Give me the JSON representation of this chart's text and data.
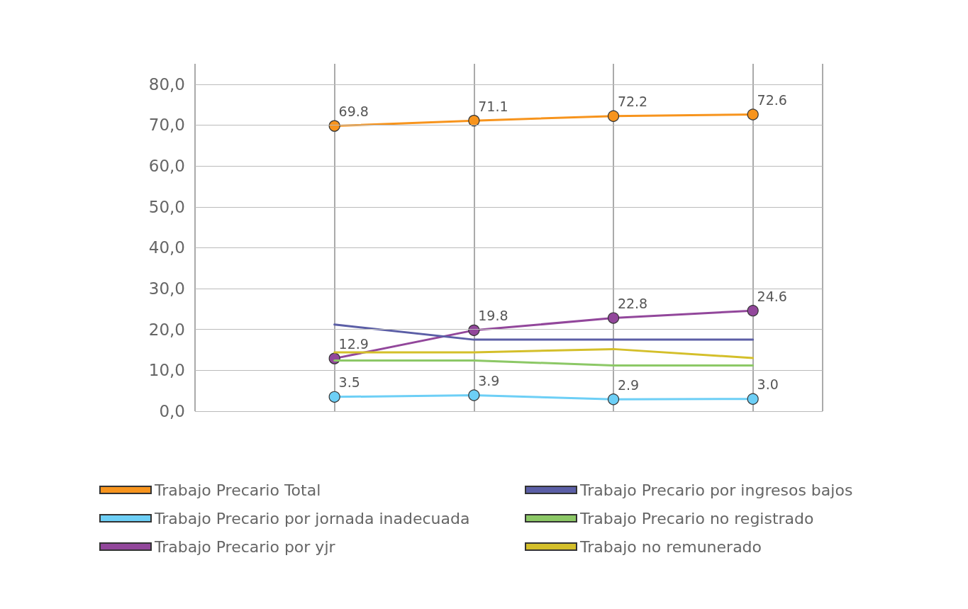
{
  "chart_data": {
    "type": "line",
    "categories": [
      null,
      null,
      null,
      null
    ],
    "ylim": [
      0,
      85
    ],
    "yticks": [
      {
        "value": 0,
        "label": "0,0"
      },
      {
        "value": 10,
        "label": "10,0"
      },
      {
        "value": 20,
        "label": "20,0"
      },
      {
        "value": 30,
        "label": "30,0"
      },
      {
        "value": 40,
        "label": "40,0"
      },
      {
        "value": 50,
        "label": "50,0"
      },
      {
        "value": 60,
        "label": "60,0"
      },
      {
        "value": 70,
        "label": "70,0"
      },
      {
        "value": 80,
        "label": "80,0"
      }
    ],
    "grid": true,
    "legend": "bottom",
    "line_style": "solid",
    "series": [
      {
        "name": "Trabajo Precario Total",
        "color": "#f7941d",
        "marker": "circle",
        "values": [
          69.8,
          71.1,
          72.2,
          72.6
        ],
        "value_labels": [
          "69.8",
          "71.1",
          "72.2",
          "72.6"
        ]
      },
      {
        "name": "Trabajo Precario por ingresos bajos",
        "color": "#5b5ea6",
        "marker": "none",
        "values": [
          21.2,
          17.5,
          17.5,
          17.5
        ]
      },
      {
        "name": "Trabajo Precario por jornada inadecuada",
        "color": "#6dcff6",
        "marker": "circle",
        "values": [
          3.5,
          3.9,
          2.9,
          3.0
        ],
        "value_labels": [
          "3.5",
          "3.9",
          "2.9",
          "3.0"
        ]
      },
      {
        "name": "Trabajo Precario no registrado",
        "color": "#8cc866",
        "marker": "none",
        "values": [
          12.4,
          12.4,
          11.2,
          11.2
        ]
      },
      {
        "name": "Trabajo Precario por yjr",
        "color": "#92479b",
        "marker": "circle",
        "values": [
          12.9,
          19.8,
          22.8,
          24.6
        ],
        "value_labels": [
          "12.9",
          "19.8",
          "22.8",
          "24.6"
        ]
      },
      {
        "name": "Trabajo no remunerado",
        "color": "#d4bf2a",
        "marker": "none",
        "values": [
          14.4,
          14.4,
          15.2,
          13.0
        ]
      }
    ]
  }
}
